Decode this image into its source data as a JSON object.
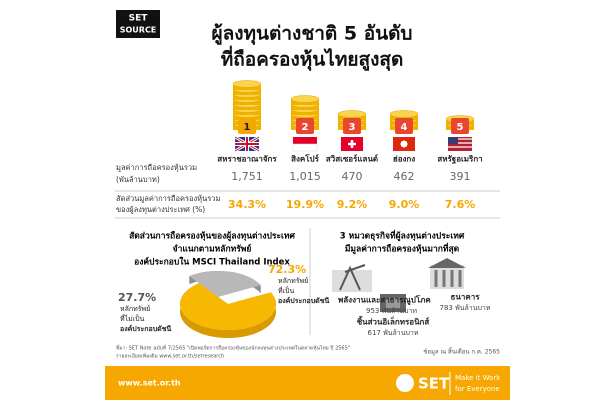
{
  "header": {
    "logo": [
      "SET",
      "SOURCE"
    ],
    "title": [
      "ผู้ลงทุนต่างชาติ 5 อันดับ",
      "ที่ถือครองหุ้นไทยสูงสุด"
    ]
  },
  "ranking": {
    "ranks": [
      "1",
      "2",
      "3",
      "4",
      "5"
    ],
    "countries": [
      "สหราชอาณาจักร",
      "สิงคโปร์",
      "สวิสเซอร์แลนด์",
      "ฮ่องกง",
      "สหรัฐอเมริกา"
    ],
    "value_label": [
      "มูลค่าการถือครองหุ้นรวม",
      "(พันล้านบาท)"
    ],
    "values": [
      "1,751",
      "1,015",
      "470",
      "462",
      "391"
    ],
    "share_label": [
      "สัดส่วนมูลค่าการถือครองหุ้นรวม",
      "ของผู้ลงทุนต่างประเทศ (%)"
    ],
    "shares": [
      "34.3%",
      "19.9%",
      "9.2%",
      "9.0%",
      "7.6%"
    ]
  },
  "holdings": {
    "title": [
      "สัดส่วนการถือครองหุ้นของผู้ลงทุนต่างประเทศ",
      "จำแนกตามหลักทรัพย์",
      "องค์ประกอบใน MSCI Thailand Index"
    ],
    "slices": [
      {
        "value": 72.3,
        "label": "72.3%",
        "caption": [
          "หลักทรัพย์",
          "ที่เป็น",
          "องค์ประกอบดัชนี"
        ]
      },
      {
        "value": 27.7,
        "label": "27.7%",
        "caption": [
          "หลักทรัพย์",
          "ที่ไม่เป็น",
          "องค์ประกอบดัชนี"
        ]
      }
    ]
  },
  "sectors": {
    "title": [
      "3 หมวดธุรกิจที่ผู้ลงทุนต่างประเทศ",
      "มีมูลค่าการถือครองหุ้นมากที่สุด"
    ],
    "items": [
      {
        "name": "พลังงานและสาธารณูปโภค",
        "value": "953 พันล้านบาท"
      },
      {
        "name": "ธนาคาร",
        "value": "783 พันล้านบาท"
      },
      {
        "name": "ชิ้นส่วนอิเล็กทรอนิกส์",
        "value": "617 พันล้านบาท"
      }
    ]
  },
  "footer": {
    "source": "ที่มา: SET Note ฉบับที่ 7/2565 \"เปิดพอร์ตการถือครองหุ้นของนักลงทุนต่างประเทศในตลาดหุ้นไทย ปี 2565\"",
    "more": "รายละเอียดเพิ่มเติม www.set.or.th/setresearch",
    "date": "ข้อมูล ณ สิ้นเดือน ก.ค. 2565",
    "website": "www.set.or.th",
    "brand": "SET",
    "slogan": [
      "Make it Work",
      "for Everyone"
    ]
  }
}
